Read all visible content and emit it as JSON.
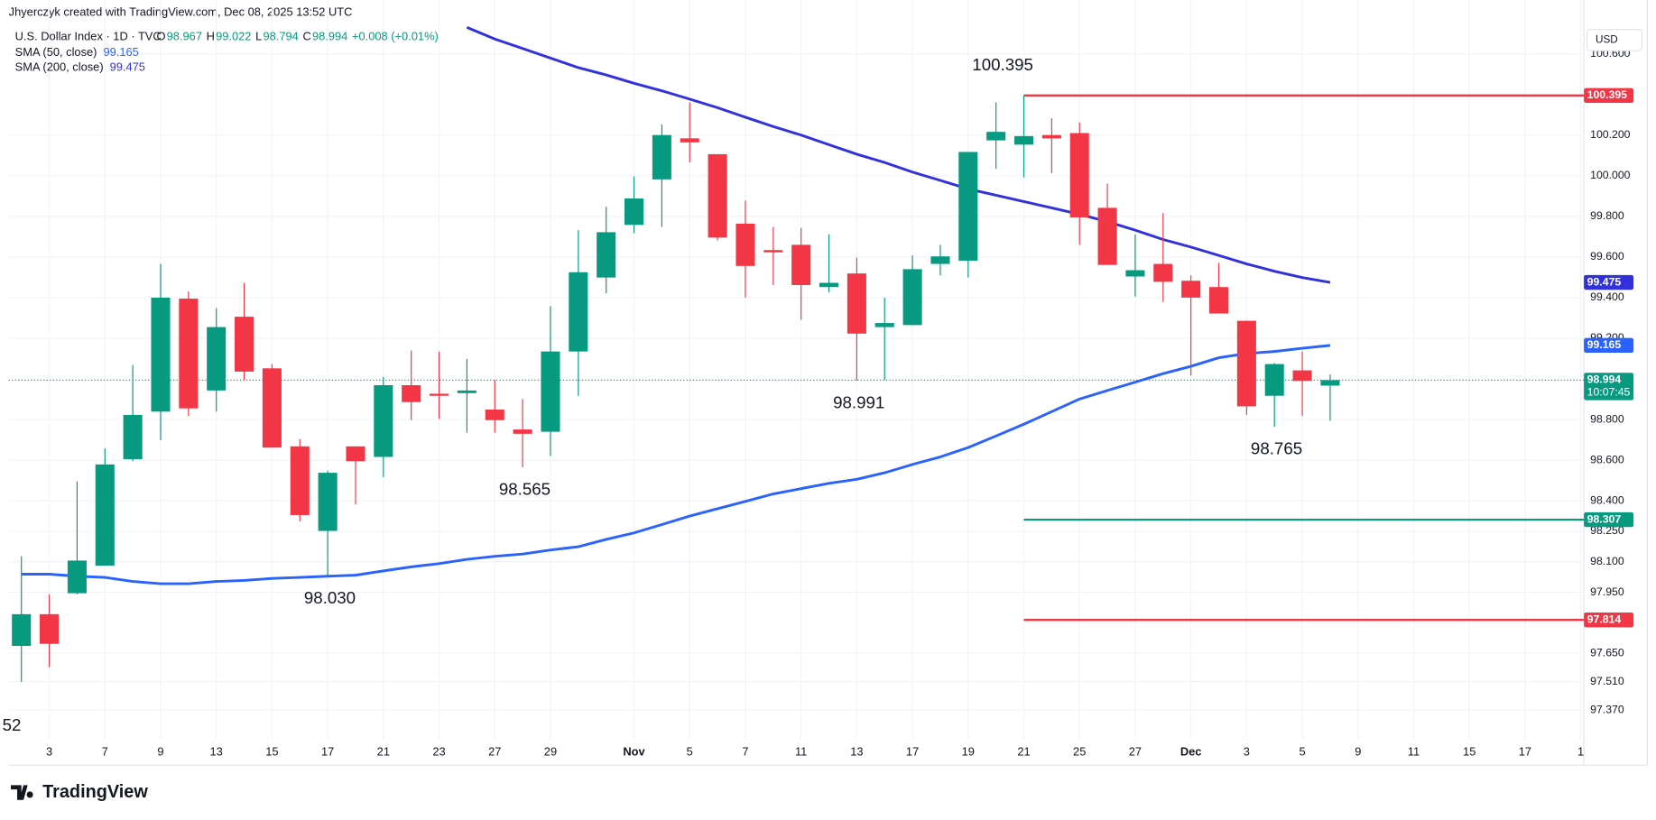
{
  "header": {
    "credit": "Jhyerczyk created with TradingView.com, Dec 08, 2025 13:52 UTC",
    "brand": "TradingView"
  },
  "chart_data": {
    "type": "candlestick",
    "symbol": "U.S. Dollar Index · 1D · TVC",
    "ohlc_letters": [
      "O",
      "H",
      "L",
      "C"
    ],
    "change": "+0.008 (+0.01%)",
    "currency": "USD",
    "countdown": "10:07:45",
    "annotations": [
      "52"
    ],
    "colors": {
      "up": "#089981",
      "down": "#f23645"
    },
    "categories": [
      null,
      "3",
      null,
      "7",
      null,
      "9",
      null,
      "13",
      null,
      "15",
      null,
      "17",
      null,
      "21",
      null,
      "23",
      null,
      "27",
      null,
      "29",
      null,
      null,
      "Nov",
      null,
      "5",
      null,
      "7",
      null,
      "11",
      null,
      "13",
      null,
      "17",
      null,
      "19",
      null,
      "21",
      null,
      "25",
      null,
      "27",
      null,
      "Dec",
      null,
      "3",
      null,
      "5",
      null,
      "9",
      null,
      "11",
      null,
      "15",
      null,
      "17",
      null,
      "1"
    ],
    "open": [
      97.686,
      97.842,
      97.945,
      98.081,
      98.605,
      98.839,
      99.395,
      98.943,
      99.306,
      99.052,
      98.668,
      98.252,
      98.668,
      98.616,
      98.969,
      98.927,
      98.93,
      98.849,
      98.751,
      98.74,
      99.135,
      99.499,
      99.758,
      99.982,
      100.184,
      100.106,
      99.764,
      99.634,
      99.66,
      99.452,
      99.519,
      99.255,
      99.265,
      99.566,
      99.582,
      100.174,
      100.153,
      100.2,
      100.21,
      99.842,
      99.504,
      99.566,
      99.483,
      99.452,
      99.286,
      98.917,
      99.042,
      98.967,
      null,
      null,
      null,
      null,
      null,
      null,
      null,
      null,
      null
    ],
    "high": [
      98.127,
      97.94,
      98.496,
      98.657,
      99.068,
      99.566,
      99.431,
      99.348,
      99.473,
      99.073,
      98.704,
      98.548,
      98.668,
      99.01,
      99.14,
      99.135,
      99.099,
      98.995,
      98.901,
      99.358,
      99.732,
      99.847,
      99.997,
      100.252,
      100.361,
      100.106,
      99.878,
      99.748,
      99.743,
      99.712,
      99.597,
      99.4,
      99.608,
      99.66,
      100.117,
      100.361,
      100.395,
      100.283,
      100.262,
      99.961,
      99.712,
      99.816,
      99.509,
      99.571,
      99.286,
      99.078,
      99.135,
      99.022,
      null,
      null,
      null,
      null,
      null,
      null,
      null,
      null,
      null
    ],
    "low": [
      97.509,
      97.582,
      97.94,
      98.081,
      98.595,
      98.699,
      98.818,
      98.839,
      98.995,
      98.662,
      98.299,
      98.03,
      98.382,
      98.517,
      98.797,
      98.803,
      98.735,
      98.735,
      98.565,
      98.621,
      98.917,
      99.421,
      99.717,
      99.748,
      100.065,
      99.681,
      99.4,
      99.462,
      99.291,
      99.426,
      98.991,
      98.995,
      99.265,
      99.509,
      99.499,
      100.034,
      99.992,
      100.013,
      99.66,
      99.561,
      99.405,
      99.379,
      99.016,
      99.322,
      98.823,
      98.765,
      98.818,
      98.794,
      null,
      null,
      null,
      null,
      null,
      null,
      null,
      null,
      null
    ],
    "close": [
      97.842,
      97.696,
      98.106,
      98.579,
      98.823,
      99.4,
      98.855,
      99.255,
      99.036,
      98.662,
      98.33,
      98.538,
      98.595,
      98.969,
      98.886,
      98.917,
      98.943,
      98.797,
      98.73,
      99.135,
      99.525,
      99.722,
      99.888,
      100.2,
      100.164,
      99.696,
      99.556,
      99.623,
      99.462,
      99.473,
      99.223,
      99.275,
      99.54,
      99.603,
      100.117,
      100.216,
      100.195,
      100.184,
      99.795,
      99.561,
      99.535,
      99.478,
      99.4,
      99.322,
      98.865,
      99.073,
      98.99,
      98.994,
      null,
      null,
      null,
      null,
      null,
      null,
      null,
      null,
      null
    ],
    "low_labels": [
      null,
      null,
      null,
      null,
      null,
      null,
      null,
      null,
      null,
      null,
      null,
      "98.030",
      null,
      null,
      null,
      null,
      null,
      null,
      "98.565",
      null,
      null,
      null,
      null,
      null,
      null,
      null,
      null,
      null,
      null,
      null,
      "98.991",
      null,
      null,
      null,
      null,
      null,
      null,
      null,
      null,
      null,
      null,
      null,
      null,
      null,
      null,
      "98.765",
      null,
      null,
      null,
      null,
      null,
      null,
      null,
      null,
      null,
      null,
      null
    ],
    "high_labels": [
      null,
      null,
      null,
      null,
      null,
      null,
      null,
      null,
      null,
      null,
      null,
      null,
      null,
      null,
      null,
      null,
      null,
      null,
      null,
      null,
      null,
      null,
      null,
      null,
      null,
      null,
      null,
      null,
      null,
      null,
      null,
      null,
      null,
      null,
      null,
      null,
      "100.395",
      null,
      null,
      null,
      null,
      null,
      null,
      null,
      null,
      null,
      null,
      null,
      null,
      null,
      null,
      null,
      null,
      null,
      null,
      null,
      null
    ],
    "overlays": [
      {
        "name": "SMA (50, close)",
        "color": "#2962ff",
        "values": [
          98.039,
          98.039,
          98.029,
          98.023,
          98.003,
          97.992,
          97.992,
          98.003,
          98.008,
          98.018,
          98.023,
          98.029,
          98.034,
          98.055,
          98.075,
          98.091,
          98.112,
          98.127,
          98.138,
          98.158,
          98.174,
          98.21,
          98.242,
          98.283,
          98.325,
          98.361,
          98.397,
          98.434,
          98.46,
          98.486,
          98.506,
          98.538,
          98.579,
          98.616,
          98.662,
          98.719,
          98.777,
          98.839,
          98.901,
          98.943,
          98.984,
          99.026,
          99.062,
          99.104,
          99.125,
          99.135,
          99.151,
          99.165,
          null,
          null,
          null,
          null,
          null,
          null,
          null,
          null,
          null
        ]
      },
      {
        "name": "SMA (200, close)",
        "color": "#3131dc",
        "values": [
          null,
          null,
          null,
          null,
          null,
          null,
          null,
          null,
          null,
          null,
          null,
          null,
          null,
          null,
          null,
          null,
          100.73,
          100.673,
          100.626,
          100.579,
          100.532,
          100.496,
          100.455,
          100.418,
          100.377,
          100.335,
          100.288,
          100.242,
          100.2,
          100.153,
          100.106,
          100.065,
          100.018,
          99.977,
          99.935,
          99.904,
          99.873,
          99.842,
          99.81,
          99.774,
          99.732,
          99.686,
          99.649,
          99.608,
          99.566,
          99.53,
          99.499,
          99.475,
          null,
          null,
          null,
          null,
          null,
          null,
          null,
          null,
          null
        ]
      }
    ],
    "levels": [
      {
        "value": 100.395,
        "color": "#f23645"
      },
      {
        "value": 98.307,
        "color": "#089981"
      },
      {
        "value": 97.814,
        "color": "#f23645"
      }
    ],
    "ylim": [
      97.229,
      100.761
    ],
    "yticks": [
      {
        "value": 100.6,
        "label": "100.600"
      },
      {
        "value": 100.2,
        "label": "100.200"
      },
      {
        "value": 100,
        "label": "100.000"
      },
      {
        "value": 99.8,
        "label": "99.800"
      },
      {
        "value": 99.6,
        "label": "99.600"
      },
      {
        "value": 99.4,
        "label": "99.400"
      },
      {
        "value": 99.2,
        "label": "99.200"
      },
      {
        "value": 98.8,
        "label": "98.800"
      },
      {
        "value": 98.6,
        "label": "98.600"
      },
      {
        "value": 98.4,
        "label": "98.400"
      },
      {
        "value": 98.25,
        "label": "98.250"
      },
      {
        "value": 98.1,
        "label": "98.100"
      },
      {
        "value": 97.95,
        "label": "97.950"
      },
      {
        "value": 97.65,
        "label": "97.650"
      },
      {
        "value": 97.51,
        "label": "97.510"
      },
      {
        "value": 97.37,
        "label": "97.370"
      }
    ],
    "grid": true
  }
}
